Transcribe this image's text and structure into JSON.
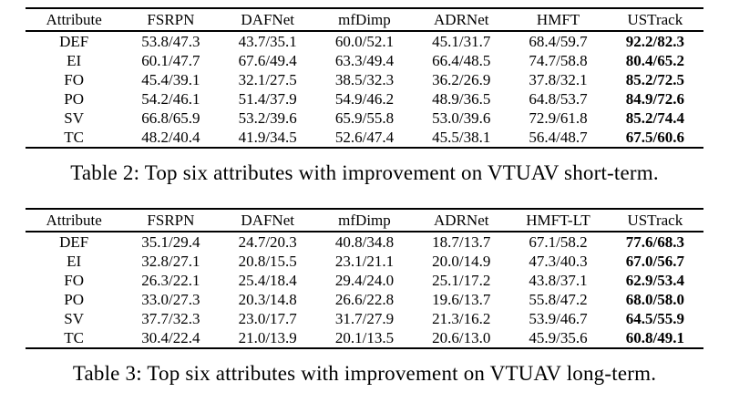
{
  "page": {
    "background_color": "#ffffff",
    "text_color": "#000000"
  },
  "tables": [
    {
      "caption": "Table 2: Top six attributes with improvement on VTUAV short-term.",
      "columns": [
        "Attribute",
        "FSRPN",
        "DAFNet",
        "mfDimp",
        "ADRNet",
        "HMFT",
        "USTrack"
      ],
      "bold_last_column": true,
      "rows": [
        {
          "attribute": "DEF",
          "values": [
            "53.8/47.3",
            "43.7/35.1",
            "60.0/52.1",
            "45.1/31.7",
            "68.4/59.7",
            "92.2/82.3"
          ]
        },
        {
          "attribute": "EI",
          "values": [
            "60.1/47.7",
            "67.6/49.4",
            "63.3/49.4",
            "66.4/48.5",
            "74.7/58.8",
            "80.4/65.2"
          ]
        },
        {
          "attribute": "FO",
          "values": [
            "45.4/39.1",
            "32.1/27.5",
            "38.5/32.3",
            "36.2/26.9",
            "37.8/32.1",
            "85.2/72.5"
          ]
        },
        {
          "attribute": "PO",
          "values": [
            "54.2/46.1",
            "51.4/37.9",
            "54.9/46.2",
            "48.9/36.5",
            "64.8/53.7",
            "84.9/72.6"
          ]
        },
        {
          "attribute": "SV",
          "values": [
            "66.8/65.9",
            "53.2/39.6",
            "65.9/55.8",
            "53.0/39.6",
            "72.9/61.8",
            "85.2/74.4"
          ]
        },
        {
          "attribute": "TC",
          "values": [
            "48.2/40.4",
            "41.9/34.5",
            "52.6/47.4",
            "45.5/38.1",
            "56.4/48.7",
            "67.5/60.6"
          ]
        }
      ]
    },
    {
      "caption": "Table 3: Top six attributes with improvement on VTUAV long-term.",
      "columns": [
        "Attribute",
        "FSRPN",
        "DAFNet",
        "mfDimp",
        "ADRNet",
        "HMFT-LT",
        "USTrack"
      ],
      "bold_last_column": true,
      "rows": [
        {
          "attribute": "DEF",
          "values": [
            "35.1/29.4",
            "24.7/20.3",
            "40.8/34.8",
            "18.7/13.7",
            "67.1/58.2",
            "77.6/68.3"
          ]
        },
        {
          "attribute": "EI",
          "values": [
            "32.8/27.1",
            "20.8/15.5",
            "23.1/21.1",
            "20.0/14.9",
            "47.3/40.3",
            "67.0/56.7"
          ]
        },
        {
          "attribute": "FO",
          "values": [
            "26.3/22.1",
            "25.4/18.4",
            "29.4/24.0",
            "25.1/17.2",
            "43.8/37.1",
            "62.9/53.4"
          ]
        },
        {
          "attribute": "PO",
          "values": [
            "33.0/27.3",
            "20.3/14.8",
            "26.6/22.8",
            "19.6/13.7",
            "55.8/47.2",
            "68.0/58.0"
          ]
        },
        {
          "attribute": "SV",
          "values": [
            "37.7/32.3",
            "23.0/17.7",
            "31.7/27.9",
            "21.3/16.2",
            "53.9/46.7",
            "64.5/55.9"
          ]
        },
        {
          "attribute": "TC",
          "values": [
            "30.4/22.4",
            "21.0/13.9",
            "20.1/13.5",
            "20.6/13.0",
            "45.9/35.6",
            "60.8/49.1"
          ]
        }
      ]
    }
  ]
}
